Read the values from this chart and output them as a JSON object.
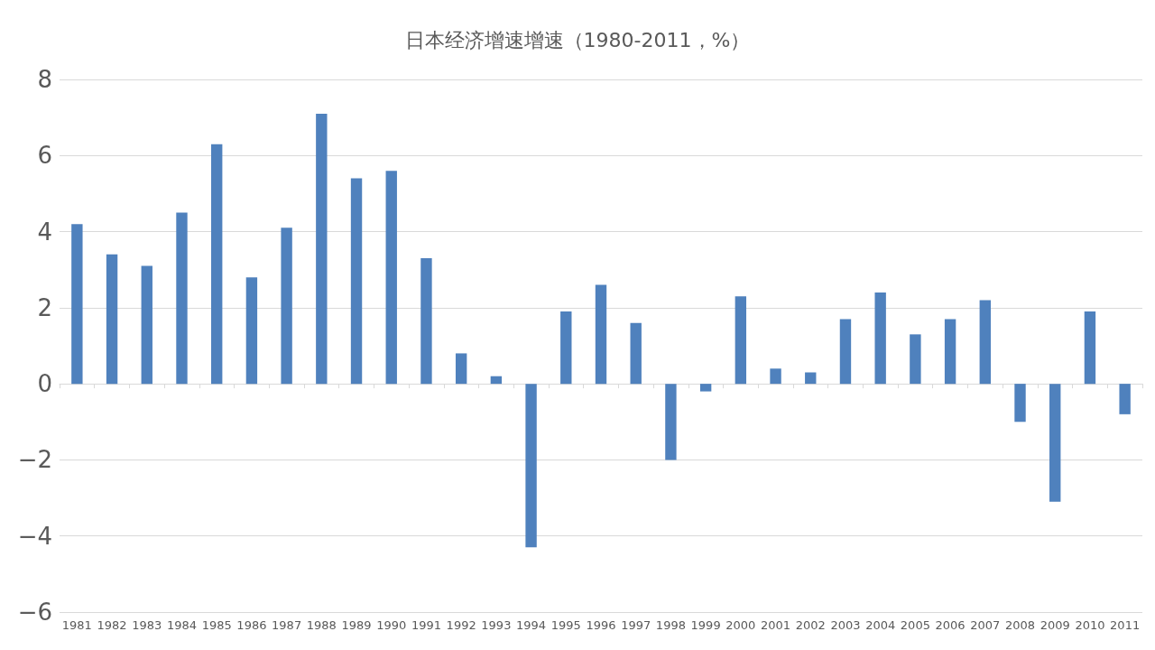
{
  "chart_data": {
    "type": "bar",
    "title": "日本经济增速增速（1980-2011，%）",
    "categories": [
      "1981",
      "1982",
      "1983",
      "1984",
      "1985",
      "1986",
      "1987",
      "1988",
      "1989",
      "1990",
      "1991",
      "1992",
      "1993",
      "1994",
      "1995",
      "1996",
      "1997",
      "1998",
      "1999",
      "2000",
      "2001",
      "2002",
      "2003",
      "2004",
      "2005",
      "2006",
      "2007",
      "2008",
      "2009",
      "2010",
      "2011"
    ],
    "values": [
      4.2,
      3.4,
      3.1,
      4.5,
      6.3,
      2.8,
      4.1,
      7.1,
      5.4,
      5.6,
      3.3,
      0.8,
      0.2,
      -4.3,
      1.9,
      2.6,
      1.6,
      -2.0,
      -0.2,
      2.3,
      0.4,
      0.3,
      1.7,
      2.4,
      1.3,
      1.7,
      2.2,
      -1.0,
      -3.1,
      1.9,
      -0.8
    ],
    "color": "#4f81bd",
    "ylim": [
      -6,
      8
    ],
    "yticks": [
      -6,
      -4,
      -2,
      0,
      2,
      4,
      6,
      8
    ],
    "grid": "y"
  }
}
